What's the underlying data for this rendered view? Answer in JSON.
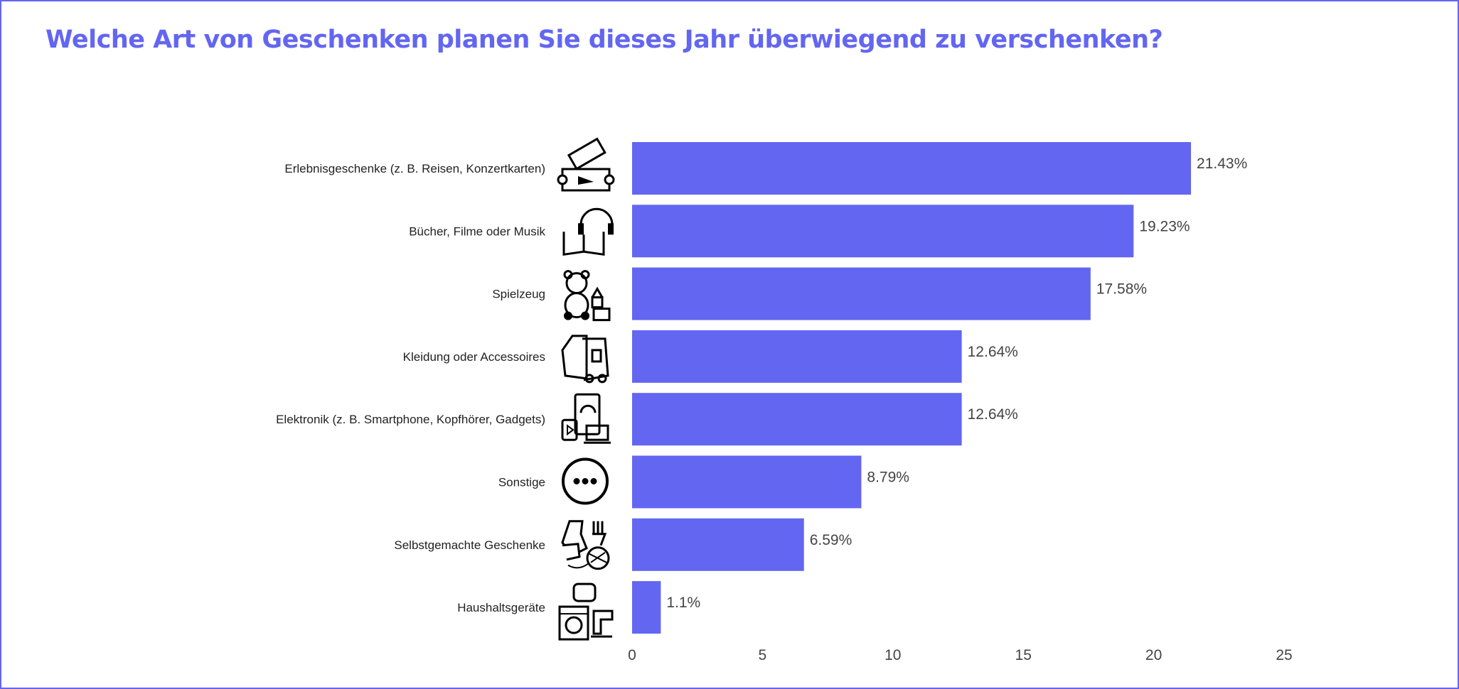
{
  "chart_data": {
    "type": "bar",
    "orientation": "horizontal",
    "title": "Welche Art von Geschenken planen Sie dieses Jahr überwiegend zu verschenken?",
    "categories": [
      "Erlebnisgeschenke (z. B. Reisen, Konzertkarten)",
      "Bücher, Filme oder Musik",
      "Spielzeug",
      "Kleidung oder Accessoires",
      "Elektronik (z. B. Smartphone, Kopfhörer, Gadgets)",
      "Sonstige",
      "Selbstgemachte Geschenke",
      "Haushaltsgeräte"
    ],
    "icons": [
      "ticket-icon",
      "book-headphones-icon",
      "teddy-bear-icon",
      "clothing-icon",
      "electronics-icon",
      "more-dots-icon",
      "handmade-yarn-icon",
      "home-appliances-icon"
    ],
    "values": [
      21.43,
      19.23,
      17.58,
      12.64,
      12.64,
      8.79,
      6.59,
      1.1
    ],
    "value_labels": [
      "21.43%",
      "19.23%",
      "17.58%",
      "12.64%",
      "12.64%",
      "8.79%",
      "6.59%",
      "1.1%"
    ],
    "xlim": [
      0,
      25
    ],
    "xticks": [
      "0",
      "5",
      "10",
      "15",
      "20",
      "25"
    ],
    "xlabel": "",
    "ylabel": "",
    "grid": false,
    "bar_color": "#6366f1"
  }
}
